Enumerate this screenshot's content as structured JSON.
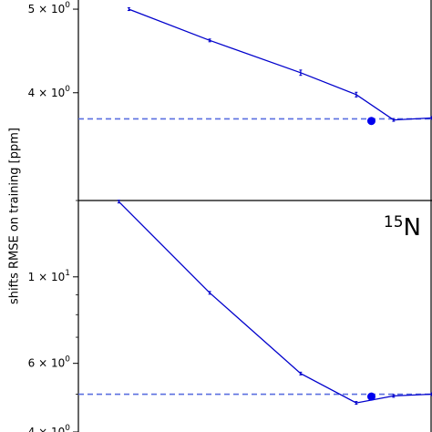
{
  "chart_data": [
    {
      "type": "line",
      "panel": "top",
      "ylabel": "",
      "y_scale": "log",
      "ylim": [
        3.0,
        5.25
      ],
      "y_ticks": [
        {
          "value": 5,
          "mantissa": "5",
          "base": "10",
          "exp": "0"
        },
        {
          "value": 4,
          "mantissa": "4",
          "base": "10",
          "exp": "0"
        }
      ],
      "series": [
        {
          "color": "#0000cc",
          "x": [
            1.5,
            2.3,
            3.2,
            3.75,
            4.12,
            4.5
          ],
          "y": [
            5.0,
            4.6,
            4.22,
            3.98,
            3.72,
            3.74
          ],
          "yerr": [
            0,
            0,
            0.03,
            0.025,
            0,
            0
          ]
        }
      ],
      "reference_line": {
        "y": 3.73,
        "style": "dashed",
        "color": "#5a6fe0"
      },
      "highlight_point": {
        "x": 3.9,
        "y": 3.71
      }
    },
    {
      "type": "line",
      "panel": "bottom",
      "label_superscript": "15",
      "label_text": "N",
      "y_scale": "log",
      "ylim": [
        4.0,
        15.7
      ],
      "y_ticks": [
        {
          "value": 10,
          "mantissa": "1",
          "base": "10",
          "exp": "1"
        },
        {
          "value": 6,
          "mantissa": "6",
          "base": "10",
          "exp": "0"
        },
        {
          "value": 4,
          "mantissa": "4",
          "base": "10",
          "exp": "0"
        }
      ],
      "series": [
        {
          "color": "#0000cc",
          "x": [
            1.4,
            2.3,
            3.2,
            3.75,
            4.12,
            4.5
          ],
          "y": [
            15.6,
            9.1,
            5.65,
            4.75,
            4.95,
            5.0
          ],
          "yerr": [
            0,
            0,
            0,
            0,
            0,
            0
          ]
        }
      ],
      "reference_line": {
        "y": 5.0,
        "style": "dashed",
        "color": "#5a6fe0"
      },
      "highlight_point": {
        "x": 3.9,
        "y": 4.93
      }
    }
  ],
  "shared_ylabel": "shifts RMSE on training [ppm]"
}
